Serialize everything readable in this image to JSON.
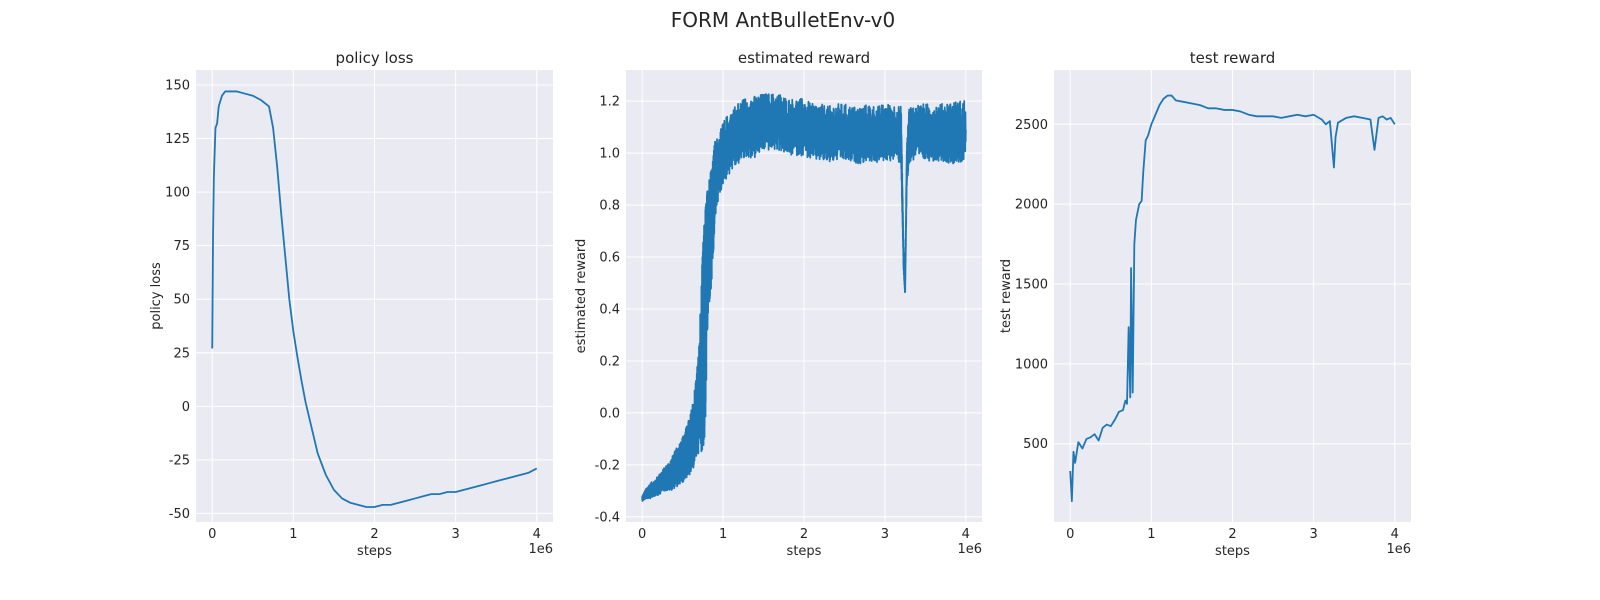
{
  "figure": {
    "title": "FORM AntBulletEnv-v0"
  },
  "chart_data": [
    {
      "type": "line",
      "title": "policy loss",
      "xlabel": "steps",
      "ylabel": "policy loss",
      "x_offset_label": "1e6",
      "xlim": [
        -0.2,
        4.2
      ],
      "ylim": [
        -54,
        157
      ],
      "xticks": [
        0,
        1,
        2,
        3,
        4
      ],
      "yticks": [
        -50,
        -25,
        0,
        25,
        50,
        75,
        100,
        125,
        150
      ],
      "grid": true,
      "line_color": "#1f77b4",
      "series": [
        {
          "x": [
            0,
            0.01,
            0.02,
            0.04,
            0.06,
            0.08,
            0.12,
            0.16,
            0.2,
            0.3,
            0.4,
            0.5,
            0.6,
            0.7,
            0.75,
            0.8,
            0.85,
            0.9,
            0.95,
            1.0,
            1.05,
            1.1,
            1.15,
            1.2,
            1.25,
            1.3,
            1.4,
            1.5,
            1.6,
            1.7,
            1.8,
            1.9,
            2.0,
            2.1,
            2.2,
            2.3,
            2.4,
            2.5,
            2.6,
            2.7,
            2.8,
            2.9,
            3.0,
            3.1,
            3.2,
            3.3,
            3.4,
            3.5,
            3.6,
            3.7,
            3.8,
            3.9,
            4.0
          ],
          "y": [
            27,
            80,
            107,
            130,
            132,
            140,
            145,
            147,
            147,
            147,
            146,
            145,
            143,
            140,
            130,
            112,
            90,
            70,
            50,
            35,
            23,
            12,
            2,
            -6,
            -14,
            -22,
            -32,
            -39,
            -43,
            -45,
            -46,
            -47,
            -47,
            -46,
            -46,
            -45,
            -44,
            -43,
            -42,
            -41,
            -41,
            -40,
            -40,
            -39,
            -38,
            -37,
            -36,
            -35,
            -34,
            -33,
            -32,
            -31,
            -29
          ]
        }
      ]
    },
    {
      "type": "line",
      "title": "estimated reward",
      "xlabel": "steps",
      "ylabel": "estimated reward",
      "x_offset_label": "1e6",
      "xlim": [
        -0.2,
        4.2
      ],
      "ylim": [
        -0.42,
        1.32
      ],
      "xticks": [
        0,
        1,
        2,
        3,
        4
      ],
      "yticks": [
        -0.4,
        -0.2,
        0.0,
        0.2,
        0.4,
        0.6,
        0.8,
        1.0,
        1.2
      ],
      "grid": true,
      "line_color": "#1f77b4",
      "series": [
        {
          "x": [
            0,
            0.05,
            0.1,
            0.15,
            0.2,
            0.25,
            0.3,
            0.35,
            0.4,
            0.45,
            0.5,
            0.55,
            0.6,
            0.65,
            0.7,
            0.75,
            0.78,
            0.8,
            0.82,
            0.85,
            0.88,
            0.9,
            0.95,
            1.0,
            1.1,
            1.2,
            1.3,
            1.4,
            1.5,
            1.6,
            1.7,
            1.8,
            1.9,
            2.0,
            2.1,
            2.2,
            2.3,
            2.4,
            2.5,
            2.6,
            2.7,
            2.8,
            2.9,
            3.0,
            3.1,
            3.2,
            3.23,
            3.25,
            3.27,
            3.3,
            3.4,
            3.5,
            3.6,
            3.7,
            3.8,
            3.9,
            4.0
          ],
          "y": [
            -0.33,
            -0.31,
            -0.3,
            -0.29,
            -0.28,
            -0.26,
            -0.25,
            -0.24,
            -0.22,
            -0.2,
            -0.18,
            -0.15,
            -0.12,
            -0.05,
            0.05,
            0.25,
            0.35,
            0.55,
            0.65,
            0.7,
            0.8,
            0.9,
            0.95,
            1.0,
            1.05,
            1.08,
            1.1,
            1.1,
            1.12,
            1.12,
            1.12,
            1.1,
            1.1,
            1.1,
            1.08,
            1.08,
            1.07,
            1.08,
            1.08,
            1.07,
            1.07,
            1.08,
            1.07,
            1.08,
            1.08,
            1.07,
            0.6,
            0.47,
            0.95,
            1.07,
            1.08,
            1.08,
            1.08,
            1.08,
            1.08,
            1.08,
            1.09
          ],
          "band": [
            0.01,
            0.02,
            0.03,
            0.03,
            0.04,
            0.04,
            0.05,
            0.06,
            0.07,
            0.08,
            0.09,
            0.1,
            0.12,
            0.15,
            0.2,
            0.4,
            0.45,
            0.3,
            0.25,
            0.25,
            0.2,
            0.15,
            0.12,
            0.12,
            0.12,
            0.12,
            0.12,
            0.12,
            0.11,
            0.11,
            0.11,
            0.11,
            0.11,
            0.11,
            0.11,
            0.11,
            0.11,
            0.11,
            0.11,
            0.11,
            0.11,
            0.11,
            0.11,
            0.11,
            0.11,
            0.11,
            0.05,
            0.02,
            0.08,
            0.11,
            0.11,
            0.11,
            0.11,
            0.11,
            0.12,
            0.12,
            0.12
          ]
        }
      ]
    },
    {
      "type": "line",
      "title": "test reward",
      "xlabel": "steps",
      "ylabel": "test reward",
      "x_offset_label": "1e6",
      "xlim": [
        -0.2,
        4.2
      ],
      "ylim": [
        10,
        2840
      ],
      "xticks": [
        0,
        1,
        2,
        3,
        4
      ],
      "yticks": [
        500,
        1000,
        1500,
        2000,
        2500
      ],
      "grid": true,
      "line_color": "#1f77b4",
      "series": [
        {
          "x": [
            0,
            0.02,
            0.04,
            0.06,
            0.1,
            0.15,
            0.2,
            0.25,
            0.3,
            0.35,
            0.4,
            0.45,
            0.5,
            0.55,
            0.6,
            0.65,
            0.68,
            0.7,
            0.72,
            0.74,
            0.75,
            0.77,
            0.79,
            0.81,
            0.85,
            0.88,
            0.9,
            0.93,
            0.96,
            1.0,
            1.05,
            1.1,
            1.15,
            1.2,
            1.25,
            1.3,
            1.4,
            1.5,
            1.6,
            1.7,
            1.8,
            1.9,
            2.0,
            2.1,
            2.2,
            2.3,
            2.4,
            2.5,
            2.6,
            2.7,
            2.8,
            2.9,
            3.0,
            3.1,
            3.15,
            3.2,
            3.25,
            3.27,
            3.3,
            3.4,
            3.5,
            3.6,
            3.7,
            3.75,
            3.8,
            3.85,
            3.9,
            3.95,
            4.0
          ],
          "y": [
            330,
            140,
            450,
            380,
            510,
            470,
            530,
            540,
            560,
            520,
            600,
            620,
            610,
            650,
            700,
            710,
            770,
            750,
            1230,
            790,
            1600,
            820,
            1750,
            1900,
            2000,
            2020,
            2200,
            2400,
            2430,
            2500,
            2560,
            2620,
            2660,
            2680,
            2680,
            2650,
            2640,
            2630,
            2620,
            2600,
            2600,
            2590,
            2590,
            2580,
            2560,
            2550,
            2550,
            2550,
            2540,
            2550,
            2560,
            2550,
            2560,
            2530,
            2500,
            2520,
            2230,
            2420,
            2510,
            2540,
            2550,
            2540,
            2530,
            2340,
            2540,
            2550,
            2530,
            2540,
            2500
          ]
        }
      ]
    }
  ]
}
